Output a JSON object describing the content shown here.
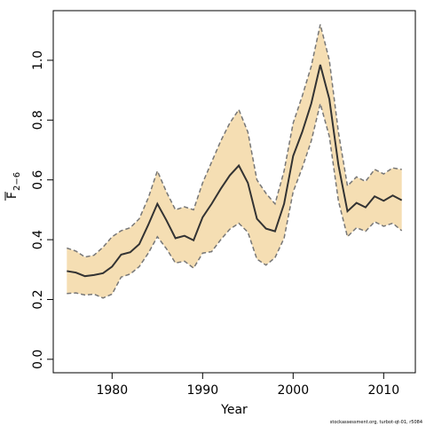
{
  "chart_data": {
    "type": "line",
    "x_label": "Year",
    "y_label": "F",
    "y_label_subscript": "2−6",
    "footer": "stockassessment.org, turbot-qt-01, r5084",
    "x": [
      1975,
      1976,
      1977,
      1978,
      1979,
      1980,
      1981,
      1982,
      1983,
      1984,
      1985,
      1986,
      1987,
      1988,
      1989,
      1990,
      1991,
      1992,
      1993,
      1994,
      1995,
      1996,
      1997,
      1998,
      1999,
      2000,
      2001,
      2002,
      2003,
      2004,
      2005,
      2006,
      2007,
      2008,
      2009,
      2010,
      2011,
      2012
    ],
    "values": [
      0.295,
      0.29,
      0.278,
      0.282,
      0.288,
      0.31,
      0.35,
      0.358,
      0.385,
      0.45,
      0.52,
      0.465,
      0.405,
      0.413,
      0.398,
      0.475,
      0.52,
      0.57,
      0.615,
      0.648,
      0.59,
      0.47,
      0.437,
      0.428,
      0.52,
      0.68,
      0.76,
      0.855,
      0.985,
      0.87,
      0.65,
      0.495,
      0.523,
      0.508,
      0.545,
      0.53,
      0.548,
      0.532
    ],
    "upper": [
      0.372,
      0.362,
      0.342,
      0.348,
      0.375,
      0.41,
      0.43,
      0.44,
      0.47,
      0.54,
      0.63,
      0.56,
      0.5,
      0.51,
      0.5,
      0.59,
      0.66,
      0.73,
      0.79,
      0.835,
      0.76,
      0.6,
      0.555,
      0.52,
      0.63,
      0.79,
      0.88,
      0.98,
      1.12,
      1.0,
      0.76,
      0.58,
      0.61,
      0.595,
      0.635,
      0.62,
      0.64,
      0.635
    ],
    "lower": [
      0.22,
      0.222,
      0.215,
      0.218,
      0.205,
      0.218,
      0.275,
      0.285,
      0.31,
      0.355,
      0.41,
      0.37,
      0.322,
      0.328,
      0.305,
      0.355,
      0.36,
      0.4,
      0.435,
      0.455,
      0.425,
      0.335,
      0.315,
      0.34,
      0.405,
      0.56,
      0.64,
      0.73,
      0.855,
      0.745,
      0.53,
      0.41,
      0.44,
      0.428,
      0.46,
      0.445,
      0.455,
      0.43
    ],
    "line_color": "#333333",
    "band_color": "#f5deb3",
    "band_edge_color": "#777777",
    "xlim": [
      1973.5,
      2013.5
    ],
    "ylim": [
      -0.045,
      1.166
    ],
    "xticks": [
      1980,
      1990,
      2000,
      2010
    ],
    "yticks": [
      {
        "value": 0,
        "label": "0.0"
      },
      0.2,
      0.4,
      0.6,
      0.8,
      {
        "value": 1,
        "label": "1.0"
      }
    ]
  }
}
